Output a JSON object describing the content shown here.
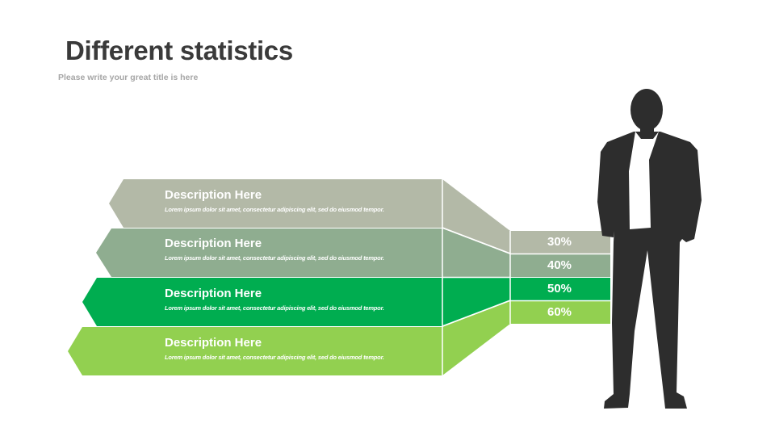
{
  "slide": {
    "title": "Different statistics",
    "subtitle": "Please write your great title is here"
  },
  "rows": [
    {
      "heading": "Description Here",
      "body": "Lorem ipsum dolor sit amet, consectetur adipiscing elit, sed do eiusmod tempor.",
      "percent": "30%",
      "color": "#b3b9a7"
    },
    {
      "heading": "Description Here",
      "body": "Lorem ipsum dolor sit amet, consectetur adipiscing elit, sed do eiusmod tempor.",
      "percent": "40%",
      "color": "#8fad90"
    },
    {
      "heading": "Description Here",
      "body": "Lorem ipsum dolor sit amet, consectetur adipiscing elit, sed do eiusmod tempor.",
      "percent": "50%",
      "color": "#00ad50"
    },
    {
      "heading": "Description Here",
      "body": "Lorem ipsum dolor sit amet, consectetur adipiscing elit, sed do eiusmod tempor.",
      "percent": "60%",
      "color": "#92d050"
    }
  ],
  "figure": {
    "icon": "businessman-silhouette-icon",
    "color": "#2d2d2d"
  }
}
